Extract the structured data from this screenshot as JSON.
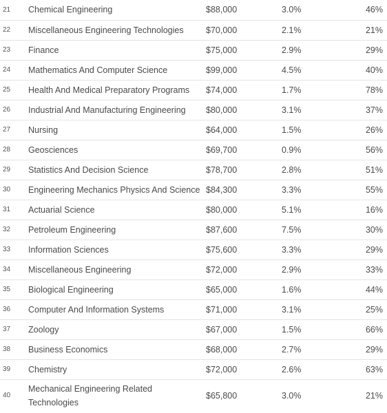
{
  "rows": [
    {
      "rank": "21",
      "major": "Chemical Engineering",
      "salary": "$88,000",
      "unemployment": "3.0%",
      "pct": "46%"
    },
    {
      "rank": "22",
      "major": "Miscellaneous Engineering Technologies",
      "salary": "$70,000",
      "unemployment": "2.1%",
      "pct": "21%"
    },
    {
      "rank": "23",
      "major": "Finance",
      "salary": "$75,000",
      "unemployment": "2.9%",
      "pct": "29%"
    },
    {
      "rank": "24",
      "major": "Mathematics And Computer Science",
      "salary": "$99,000",
      "unemployment": "4.5%",
      "pct": "40%"
    },
    {
      "rank": "25",
      "major": "Health And Medical Preparatory Programs",
      "salary": "$74,000",
      "unemployment": "1.7%",
      "pct": "78%"
    },
    {
      "rank": "26",
      "major": "Industrial And Manufacturing Engineering",
      "salary": "$80,000",
      "unemployment": "3.1%",
      "pct": "37%"
    },
    {
      "rank": "27",
      "major": "Nursing",
      "salary": "$64,000",
      "unemployment": "1.5%",
      "pct": "26%"
    },
    {
      "rank": "28",
      "major": "Geosciences",
      "salary": "$69,700",
      "unemployment": "0.9%",
      "pct": "56%"
    },
    {
      "rank": "29",
      "major": "Statistics And Decision Science",
      "salary": "$78,700",
      "unemployment": "2.8%",
      "pct": "51%"
    },
    {
      "rank": "30",
      "major": "Engineering Mechanics Physics And Science",
      "salary": "$84,300",
      "unemployment": "3.3%",
      "pct": "55%"
    },
    {
      "rank": "31",
      "major": "Actuarial Science",
      "salary": "$80,000",
      "unemployment": "5.1%",
      "pct": "16%"
    },
    {
      "rank": "32",
      "major": "Petroleum Engineering",
      "salary": "$87,600",
      "unemployment": "7.5%",
      "pct": "30%"
    },
    {
      "rank": "33",
      "major": "Information Sciences",
      "salary": "$75,600",
      "unemployment": "3.3%",
      "pct": "29%"
    },
    {
      "rank": "34",
      "major": "Miscellaneous Engineering",
      "salary": "$72,000",
      "unemployment": "2.9%",
      "pct": "33%"
    },
    {
      "rank": "35",
      "major": "Biological Engineering",
      "salary": "$65,000",
      "unemployment": "1.6%",
      "pct": "44%"
    },
    {
      "rank": "36",
      "major": "Computer And Information Systems",
      "salary": "$71,000",
      "unemployment": "3.1%",
      "pct": "25%"
    },
    {
      "rank": "37",
      "major": "Zoology",
      "salary": "$67,000",
      "unemployment": "1.5%",
      "pct": "66%"
    },
    {
      "rank": "38",
      "major": "Business Economics",
      "salary": "$68,000",
      "unemployment": "2.7%",
      "pct": "29%"
    },
    {
      "rank": "39",
      "major": "Chemistry",
      "salary": "$72,000",
      "unemployment": "2.6%",
      "pct": "63%"
    },
    {
      "rank": "40",
      "major": "Mechanical Engineering Related Technologies",
      "salary": "$65,800",
      "unemployment": "3.0%",
      "pct": "21%"
    }
  ]
}
